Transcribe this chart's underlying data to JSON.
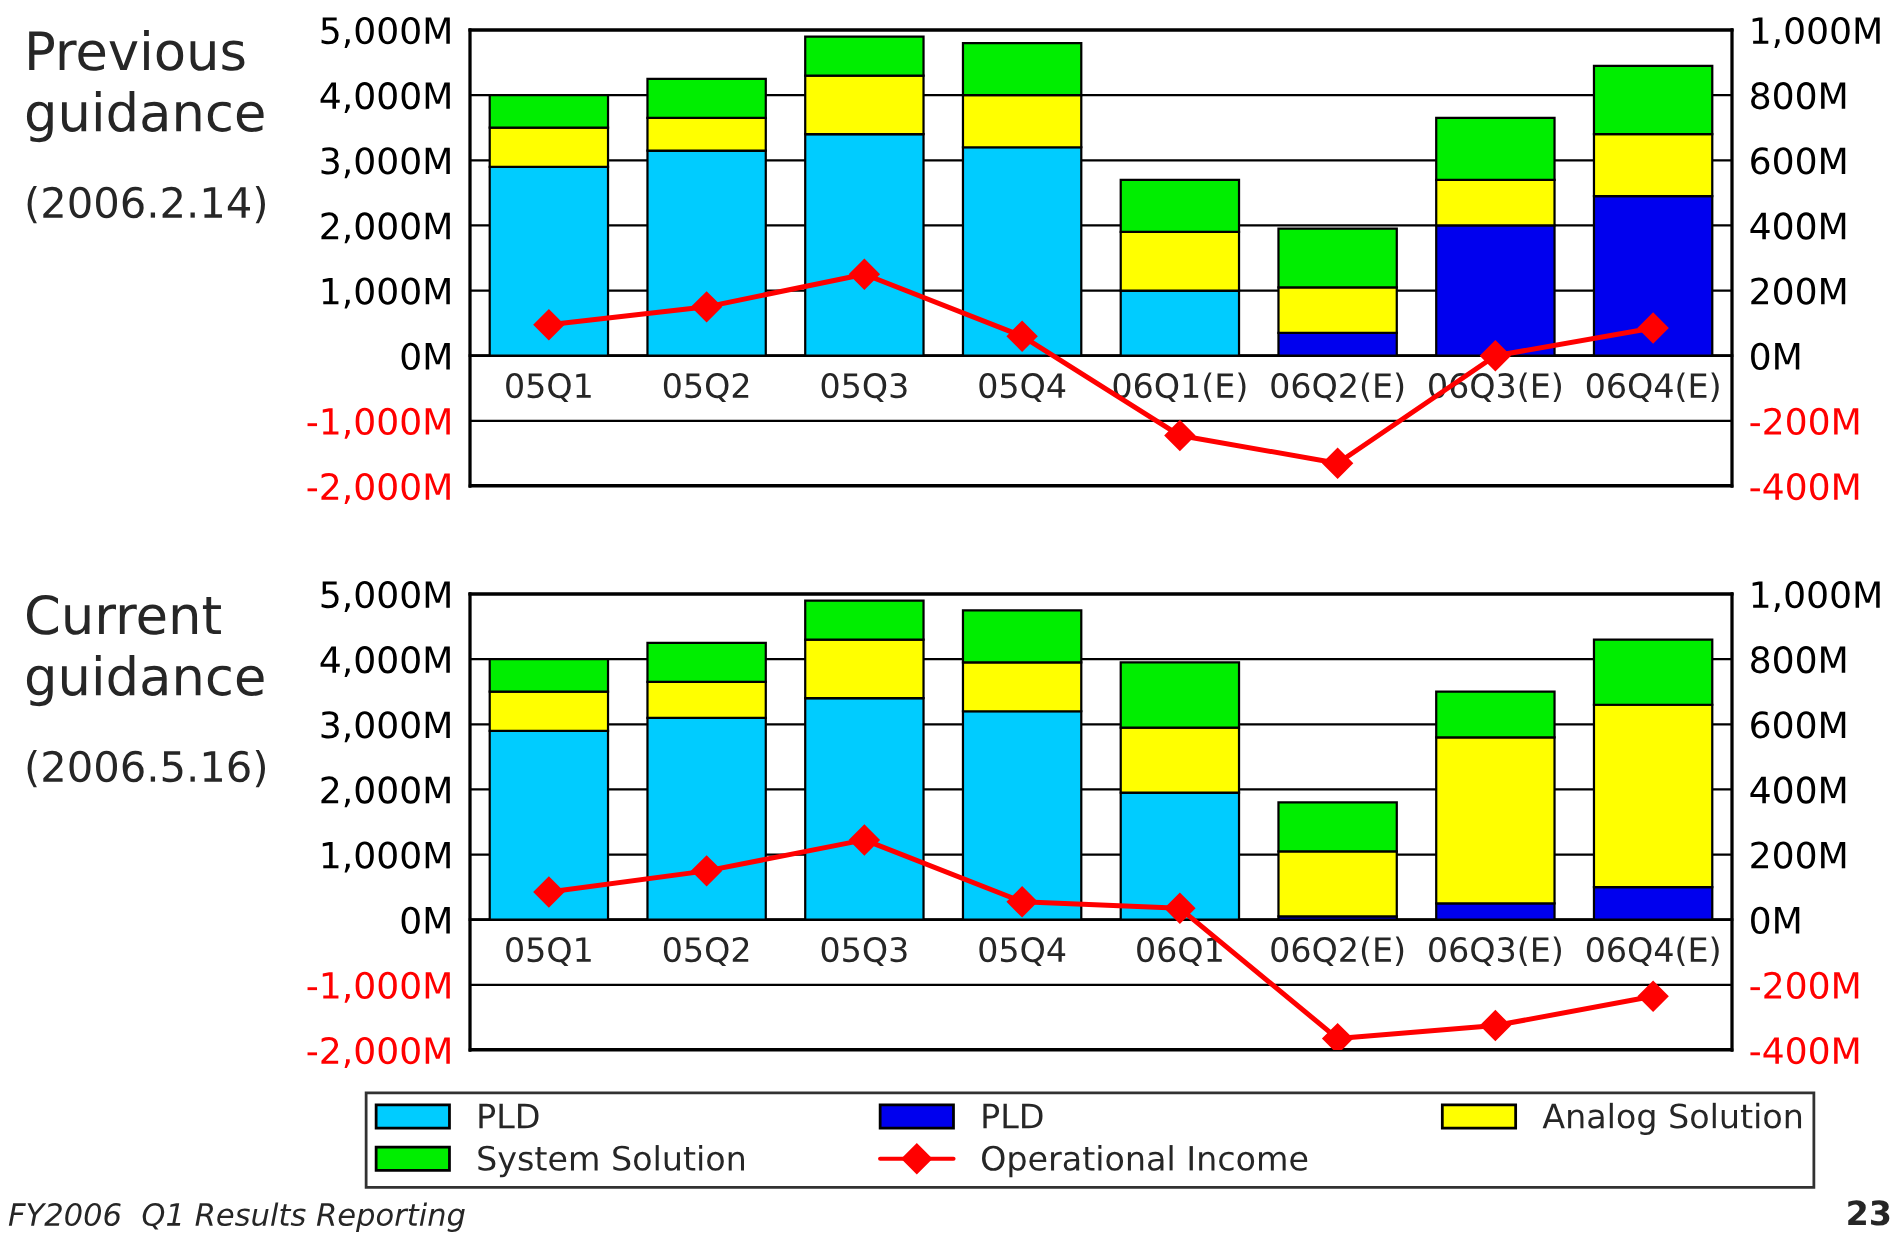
{
  "chart_data": [
    {
      "type": "bar",
      "stacked": true,
      "title": "Previous guidance",
      "subtitle": "(2006.2.14)",
      "categories": [
        "05Q1",
        "05Q2",
        "05Q3",
        "05Q4",
        "06Q1(E)",
        "06Q2(E)",
        "06Q3(E)",
        "06Q4(E)"
      ],
      "series": [
        {
          "color": "#00ccff",
          "values": [
            2900,
            3150,
            3400,
            3200,
            1000,
            null,
            null,
            null
          ]
        },
        {
          "color": "#0000ee",
          "values": [
            null,
            null,
            null,
            null,
            null,
            350,
            2000,
            2450
          ]
        },
        {
          "color": "#ffff00",
          "values": [
            600,
            500,
            900,
            800,
            900,
            700,
            700,
            950
          ]
        },
        {
          "color": "#00ee00",
          "values": [
            500,
            600,
            600,
            800,
            800,
            900,
            950,
            1050
          ]
        },
        {
          "type": "line",
          "axis": "y2",
          "color": "#ff0000",
          "marker": "diamond",
          "line_style": "solid",
          "values": [
            95,
            150,
            250,
            60,
            -245,
            -330,
            0,
            85
          ]
        }
      ],
      "ylim": [
        -2000,
        5000
      ],
      "yticks": [
        {
          "value": -2000,
          "label": "-2,000M"
        },
        {
          "value": -1000,
          "label": "-1,000M"
        },
        {
          "value": 0,
          "label": "0M"
        },
        {
          "value": 1000,
          "label": "1,000M"
        },
        {
          "value": 2000,
          "label": "2,000M"
        },
        {
          "value": 3000,
          "label": "3,000M"
        },
        {
          "value": 4000,
          "label": "4,000M"
        },
        {
          "value": 5000,
          "label": "5,000M"
        }
      ],
      "y2lim": [
        -400,
        1000
      ],
      "y2ticks": [
        {
          "value": -400,
          "label": "-400M"
        },
        {
          "value": -200,
          "label": "-200M"
        },
        {
          "value": 0,
          "label": "0M"
        },
        {
          "value": 200,
          "label": "200M"
        },
        {
          "value": 400,
          "label": "400M"
        },
        {
          "value": 600,
          "label": "600M"
        },
        {
          "value": 800,
          "label": "800M"
        },
        {
          "value": 1000,
          "label": "1,000M"
        }
      ],
      "grid": "y"
    },
    {
      "type": "bar",
      "stacked": true,
      "title": "Current guidance",
      "subtitle": "(2006.5.16)",
      "categories": [
        "05Q1",
        "05Q2",
        "05Q3",
        "05Q4",
        "06Q1",
        "06Q2(E)",
        "06Q3(E)",
        "06Q4(E)"
      ],
      "series": [
        {
          "name": "PLD",
          "color": "#00ccff",
          "values": [
            2900,
            3100,
            3400,
            3200,
            1950,
            null,
            null,
            null
          ]
        },
        {
          "name": "PLD",
          "color": "#0000ee",
          "values": [
            null,
            null,
            null,
            null,
            null,
            50,
            250,
            500
          ]
        },
        {
          "name": "Analog Solution",
          "color": "#ffff00",
          "values": [
            600,
            550,
            900,
            750,
            1000,
            1000,
            2550,
            2800
          ]
        },
        {
          "name": "System Solution",
          "color": "#00ee00",
          "values": [
            500,
            600,
            600,
            800,
            1000,
            750,
            700,
            1000
          ]
        },
        {
          "name": "Operational Income",
          "type": "line",
          "axis": "y2",
          "color": "#ff0000",
          "marker": "diamond",
          "line_style": "solid",
          "values": [
            85,
            150,
            245,
            55,
            35,
            -365,
            -325,
            -235
          ]
        }
      ],
      "ylim": [
        -2000,
        5000
      ],
      "yticks": [
        {
          "value": -2000,
          "label": "-2,000M"
        },
        {
          "value": -1000,
          "label": "-1,000M"
        },
        {
          "value": 0,
          "label": "0M"
        },
        {
          "value": 1000,
          "label": "1,000M"
        },
        {
          "value": 2000,
          "label": "2,000M"
        },
        {
          "value": 3000,
          "label": "3,000M"
        },
        {
          "value": 4000,
          "label": "4,000M"
        },
        {
          "value": 5000,
          "label": "5,000M"
        }
      ],
      "y2lim": [
        -400,
        1000
      ],
      "y2ticks": [
        {
          "value": -400,
          "label": "-400M"
        },
        {
          "value": -200,
          "label": "-200M"
        },
        {
          "value": 0,
          "label": "0M"
        },
        {
          "value": 200,
          "label": "200M"
        },
        {
          "value": 400,
          "label": "400M"
        },
        {
          "value": 600,
          "label": "600M"
        },
        {
          "value": 800,
          "label": "800M"
        },
        {
          "value": 1000,
          "label": "1,000M"
        }
      ],
      "grid": "y",
      "legend": "bottom",
      "annotations": [
        "FY2006  Q1 Results Reporting",
        "23"
      ]
    }
  ]
}
